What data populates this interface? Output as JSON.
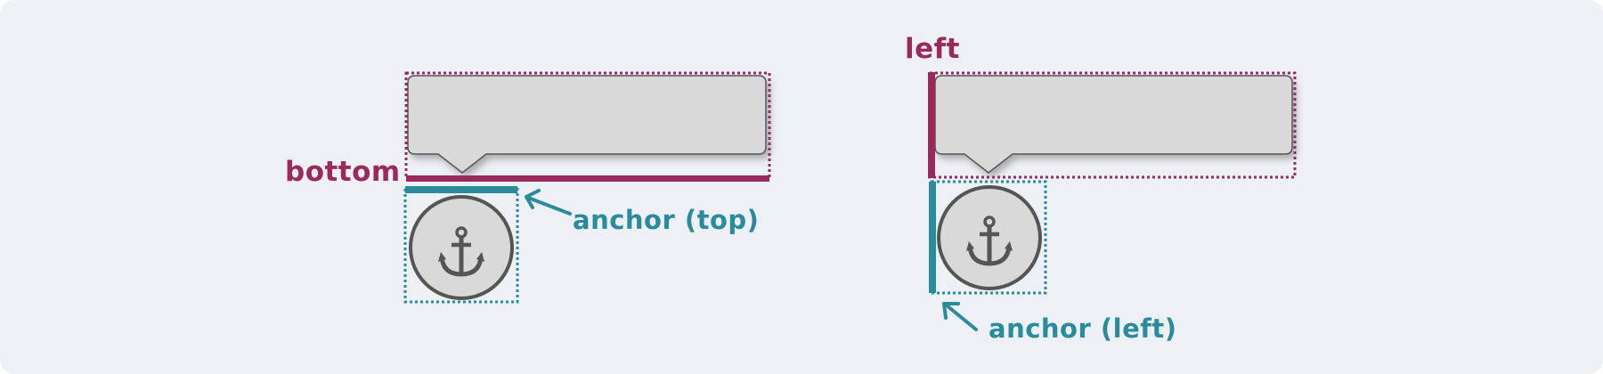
{
  "colors": {
    "background": "#edf1f5",
    "accent_magenta": "#9b2a5c",
    "accent_teal": "#2a8b9b",
    "element_fill": "#d9d9d9",
    "element_stroke": "#555555"
  },
  "left_diagram": {
    "side_label": "bottom",
    "anchor_label": "anchor (top)",
    "anchor_icon": "anchor-icon"
  },
  "right_diagram": {
    "side_label": "left",
    "anchor_label": "anchor (left)",
    "anchor_icon": "anchor-icon"
  }
}
